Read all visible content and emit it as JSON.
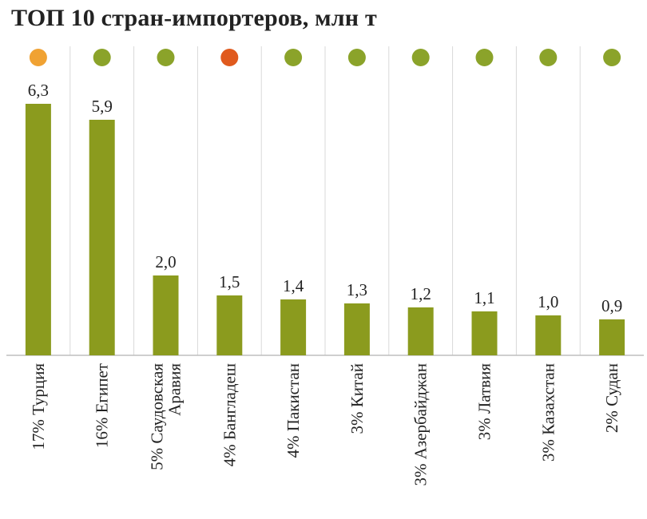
{
  "chart_data": {
    "type": "bar",
    "title": "ТОП 10 стран-импортеров, млн т",
    "xlabel": "",
    "ylabel": "",
    "ylim": [
      0,
      7
    ],
    "grid": "vertical separators",
    "categories": [
      "17% Турция",
      "16% Египет",
      "5% Саудовская Аравия",
      "4% Бангладеш",
      "4% Пакистан",
      "3% Китай",
      "3% Азербайджан",
      "3% Латвия",
      "3% Казахстан",
      "2% Судан"
    ],
    "category_lines": [
      [
        "17% Турция"
      ],
      [
        "16% Египет"
      ],
      [
        "5% Саудовская",
        "Аравия"
      ],
      [
        "4% Бангладеш"
      ],
      [
        "4% Пакистан"
      ],
      [
        "3% Китай"
      ],
      [
        "3% Азербайджан"
      ],
      [
        "3% Латвия"
      ],
      [
        "3% Казахстан"
      ],
      [
        "2% Судан"
      ]
    ],
    "values": [
      6.3,
      5.9,
      2.0,
      1.5,
      1.4,
      1.3,
      1.2,
      1.1,
      1.0,
      0.9
    ],
    "value_labels": [
      "6,3",
      "5,9",
      "2,0",
      "1,5",
      "1,4",
      "1,3",
      "1,2",
      "1,1",
      "1,0",
      "0,9"
    ],
    "status_dots": [
      "#f0a233",
      "#8ba32a",
      "#8ba32a",
      "#e05a1e",
      "#8ba32a",
      "#8ba32a",
      "#8ba32a",
      "#8ba32a",
      "#8ba32a",
      "#8ba32a"
    ],
    "bar_color": "#8b9b1e",
    "separator_color": "#d9d9d9",
    "axis_color": "#bfbfbf"
  }
}
